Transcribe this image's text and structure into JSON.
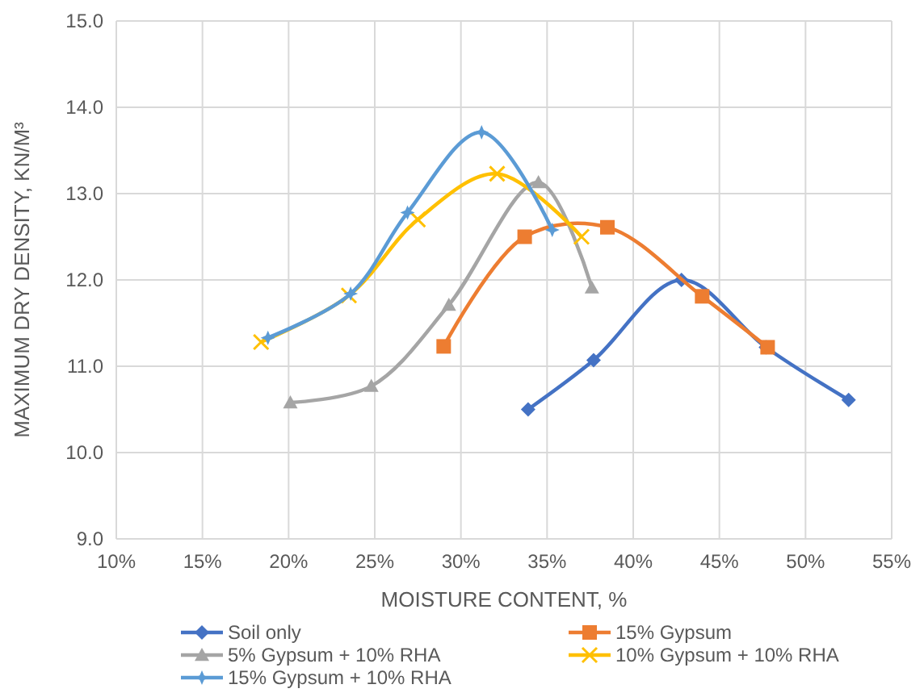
{
  "chart_data": {
    "type": "line",
    "xlabel": "MOISTURE CONTENT, %",
    "ylabel": "MAXIMUM DRY DENSITY, KN/M³",
    "xlim": [
      10,
      55
    ],
    "xticks": [
      {
        "value": 10,
        "label": "10%"
      },
      {
        "value": 15,
        "label": "15%"
      },
      {
        "value": 20,
        "label": "20%"
      },
      {
        "value": 25,
        "label": "25%"
      },
      {
        "value": 30,
        "label": "30%"
      },
      {
        "value": 35,
        "label": "35%"
      },
      {
        "value": 40,
        "label": "40%"
      },
      {
        "value": 45,
        "label": "45%"
      },
      {
        "value": 50,
        "label": "50%"
      },
      {
        "value": 55,
        "label": "55%"
      }
    ],
    "ylim": [
      9,
      15
    ],
    "yticks": [
      {
        "value": 9,
        "label": "9.0"
      },
      {
        "value": 10,
        "label": "10.0"
      },
      {
        "value": 11,
        "label": "11.0"
      },
      {
        "value": 12,
        "label": "12.0"
      },
      {
        "value": 13,
        "label": "13.0"
      },
      {
        "value": 14,
        "label": "14.0"
      },
      {
        "value": 15,
        "label": "15.0"
      }
    ],
    "grid": true,
    "legend": "bottom",
    "series": [
      {
        "name": "Soil only",
        "color": "#4472c4",
        "marker": "diamond",
        "x": [
          33.9,
          37.7,
          42.8,
          47.7,
          52.5
        ],
        "values": [
          10.5,
          11.07,
          12.0,
          11.22,
          10.61
        ]
      },
      {
        "name": "15% Gypsum",
        "color": "#ed7d31",
        "marker": "square",
        "x": [
          29.0,
          33.7,
          38.5,
          44.0,
          47.8
        ],
        "values": [
          11.23,
          12.5,
          12.61,
          11.81,
          11.22
        ]
      },
      {
        "name": "5% Gypsum + 10% RHA",
        "color": "#a5a5a5",
        "marker": "triangle",
        "x": [
          20.1,
          24.8,
          29.3,
          34.5,
          37.6
        ],
        "values": [
          10.58,
          10.77,
          11.71,
          13.13,
          11.91
        ]
      },
      {
        "name": "10% Gypsum + 10% RHA",
        "color": "#ffc000",
        "marker": "cross",
        "x": [
          18.4,
          23.5,
          27.5,
          32.1,
          37.0
        ],
        "values": [
          11.28,
          11.82,
          12.7,
          13.23,
          12.5
        ]
      },
      {
        "name": "15% Gypsum + 10% RHA",
        "color": "#5b9bd5",
        "marker": "star",
        "x": [
          18.8,
          23.6,
          26.9,
          31.2,
          35.3
        ],
        "values": [
          11.33,
          11.84,
          12.78,
          13.71,
          12.58
        ]
      }
    ]
  }
}
